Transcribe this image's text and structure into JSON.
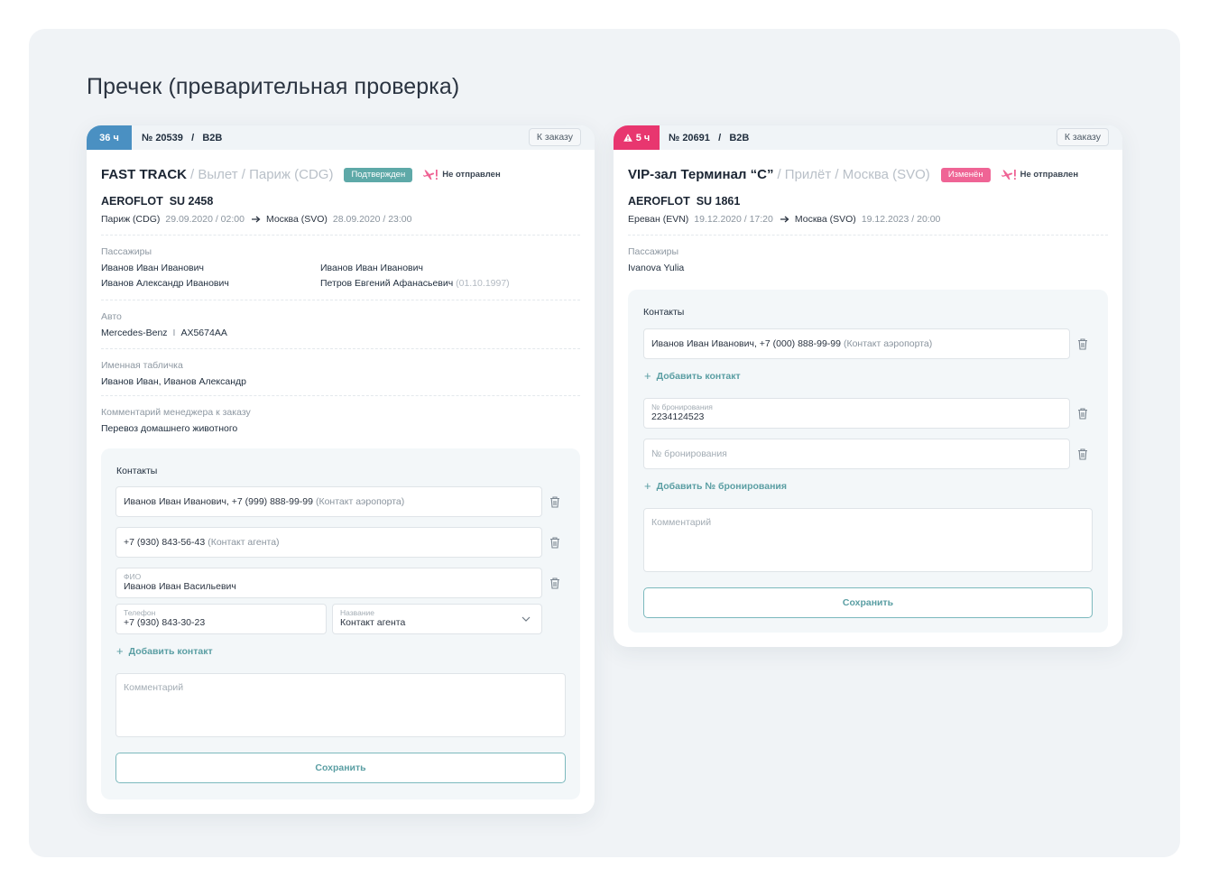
{
  "page": {
    "title": "Пречек (преварительная проверка)"
  },
  "colors": {
    "accent": "#5ea9a8",
    "timer_blue": "#4a90c2",
    "timer_red": "#e8366f",
    "badge_changed": "#ef6495"
  },
  "left": {
    "timer": "36 ч",
    "order_no": "№ 20539",
    "order_type": "B2B",
    "to_order": "К заказу",
    "service": "FAST TRACK",
    "service_rest": "/ Вылет / Париж (CDG)",
    "status_badge": "Подтвержден",
    "not_sent": "Не отправлен",
    "flight": "AEROFLOT  SU 2458",
    "route": {
      "from": "Париж (CDG)",
      "from_time": "29.09.2020 / 02:00",
      "to": "Москва (SVO)",
      "to_time": "28.09.2020 / 23:00"
    },
    "passengers_label": "Пассажиры",
    "passengers": [
      "Иванов Иван Иванович",
      "Иванов Иван Иванович",
      "Иванов Александр Иванович",
      "Петров Евгений Афанасьевич"
    ],
    "passenger_note": "(01.10.1997)",
    "auto_label": "Авто",
    "auto_model": "Mercedes-Benz",
    "auto_sep": "I",
    "auto_plate": "AX5674AA",
    "sign_label": "Именная табличка",
    "sign_value": "Иванов Иван, Иванов Александр",
    "comment_label": "Комментарий менеджера к заказу",
    "comment_value": "Перевоз домашнего животного",
    "contacts": {
      "title": "Контакты",
      "c1_value": "Иванов Иван Иванович, +7 (999) 888-99-99",
      "c1_note": "(Контакт аэропорта)",
      "c2_value": "+7 (930) 843-56-43",
      "c2_note": "(Контакт агента)",
      "fio_label": "ФИО",
      "fio_value": "Иванов Иван Васильевич",
      "phone_label": "Телефон",
      "phone_value": "+7 (930) 843-30-23",
      "name_label": "Название",
      "name_value": "Контакт агента",
      "add_contact": "Добавить контакт",
      "comment_placeholder": "Комментарий",
      "save": "Сохранить"
    }
  },
  "right": {
    "timer": "5 ч",
    "order_no": "№ 20691",
    "order_type": "B2B",
    "to_order": "К заказу",
    "service": "VIP-зал Терминал “C”",
    "service_rest": "/ Прилёт / Москва (SVO)",
    "status_badge": "Изменён",
    "not_sent": "Не отправлен",
    "flight": "AEROFLOT  SU 1861",
    "route": {
      "from": "Ереван (EVN)",
      "from_time": "19.12.2020 / 17:20",
      "to": "Москва (SVO)",
      "to_time": "19.12.2023 / 20:00"
    },
    "passengers_label": "Пассажиры",
    "passenger": "Ivanova Yulia",
    "contacts": {
      "title": "Контакты",
      "c1_value": "Иванов Иван Иванович, +7 (000) 888-99-99",
      "c1_note": "(Контакт аэропорта)",
      "add_contact": "Добавить контакт",
      "booking_label": "№ бронирования",
      "booking_value": "2234124523",
      "booking_placeholder": "№ бронирования",
      "add_booking": "Добавить № бронирования",
      "comment_placeholder": "Комментарий",
      "save": "Сохранить"
    }
  }
}
